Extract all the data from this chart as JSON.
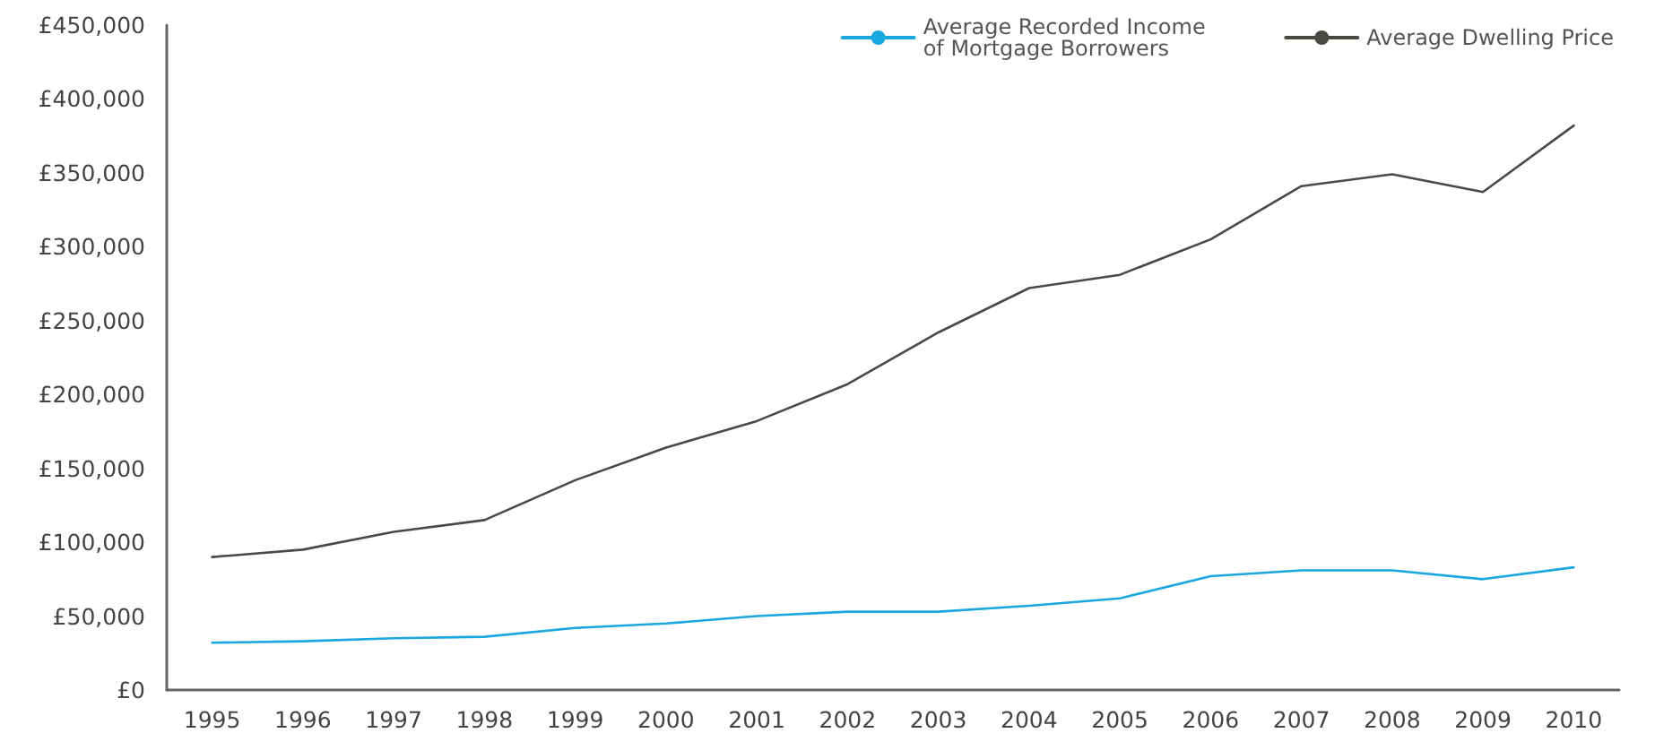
{
  "chart_data": {
    "type": "line",
    "categories": [
      "1995",
      "1996",
      "1997",
      "1998",
      "1999",
      "2000",
      "2001",
      "2002",
      "2003",
      "2004",
      "2005",
      "2006",
      "2007",
      "2008",
      "2009",
      "2010"
    ],
    "series": [
      {
        "name": "Average Recorded Income of Mortgage Borrowers",
        "color": "#1aa7e0",
        "values": [
          32000,
          33000,
          35000,
          36000,
          42000,
          45000,
          50000,
          53000,
          53000,
          57000,
          62000,
          77000,
          81000,
          81000,
          75000,
          83000
        ]
      },
      {
        "name": "Average Dwelling Price",
        "color": "#4a4a44",
        "values": [
          90000,
          95000,
          107000,
          115000,
          142000,
          164000,
          182000,
          207000,
          242000,
          272000,
          281000,
          305000,
          341000,
          349000,
          337000,
          382000
        ]
      }
    ],
    "ylim": [
      0,
      450000
    ],
    "yticks": [
      {
        "value": 0,
        "label": "£0"
      },
      {
        "value": 50000,
        "label": "£50,000"
      },
      {
        "value": 100000,
        "label": "£100,000"
      },
      {
        "value": 150000,
        "label": "£150,000"
      },
      {
        "value": 200000,
        "label": "£200,000"
      },
      {
        "value": 250000,
        "label": "£250,000"
      },
      {
        "value": 300000,
        "label": "£300,000"
      },
      {
        "value": 350000,
        "label": "£350,000"
      },
      {
        "value": 400000,
        "label": "£400,000"
      },
      {
        "value": 450000,
        "label": "£450,000"
      }
    ],
    "grid": false,
    "legend": "top right",
    "marker": "none",
    "line_style": "solid"
  }
}
